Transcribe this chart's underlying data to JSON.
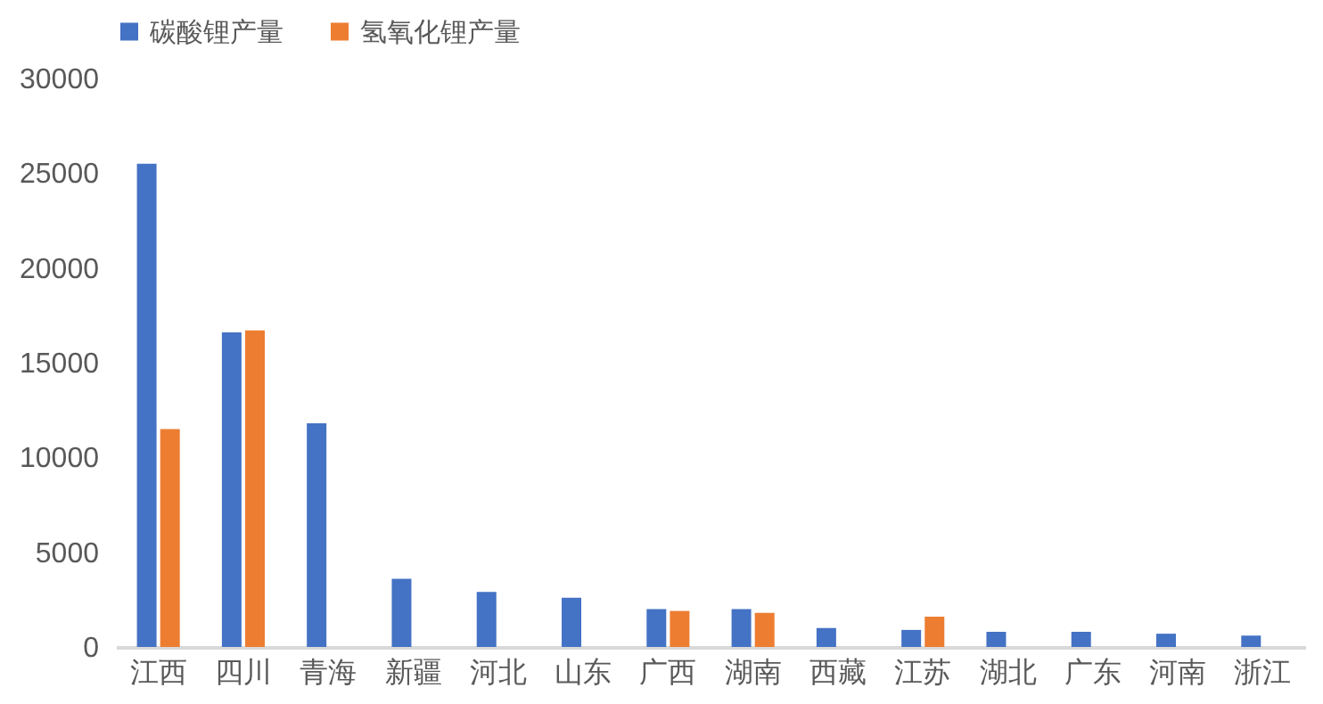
{
  "chart_data": {
    "type": "bar",
    "categories": [
      "江西",
      "四川",
      "青海",
      "新疆",
      "河北",
      "山东",
      "广西",
      "湖南",
      "西藏",
      "江苏",
      "湖北",
      "广东",
      "河南",
      "浙江"
    ],
    "series": [
      {
        "name": "碳酸锂产量",
        "color": "#4472c4",
        "values": [
          25500,
          16600,
          11800,
          3600,
          2900,
          2600,
          2000,
          2000,
          1000,
          900,
          800,
          800,
          700,
          600
        ]
      },
      {
        "name": "氢氧化锂产量",
        "color": "#ed7d31",
        "values": [
          11500,
          16700,
          null,
          null,
          null,
          null,
          1900,
          1800,
          null,
          1600,
          null,
          null,
          null,
          null
        ]
      }
    ],
    "ylim": [
      0,
      30000
    ],
    "yticks": [
      0,
      5000,
      10000,
      15000,
      20000,
      25000,
      30000
    ],
    "grid": false,
    "legend": "top"
  }
}
